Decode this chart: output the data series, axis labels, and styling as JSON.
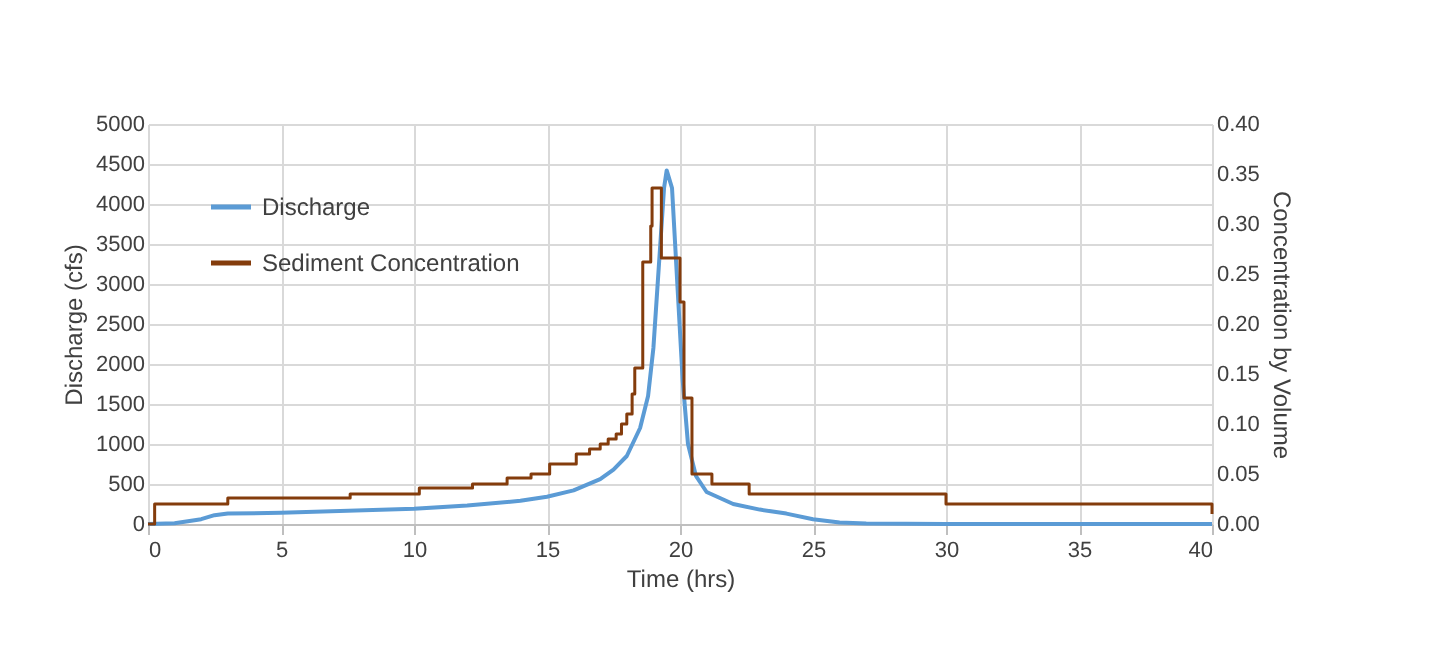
{
  "chart_data": {
    "type": "line",
    "xlabel": "Time (hrs)",
    "ylabel": "Discharge (cfs)",
    "y2label": "Concentration by Volume",
    "xlim": [
      0,
      40
    ],
    "xticks": [
      0,
      5,
      10,
      15,
      20,
      25,
      30,
      35,
      40
    ],
    "ylim": [
      0,
      5000
    ],
    "yticks": [
      0,
      500,
      1000,
      1500,
      2000,
      2500,
      3000,
      3500,
      4000,
      4500,
      5000
    ],
    "y2lim": [
      0,
      0.4
    ],
    "y2ticks": [
      {
        "value": 0,
        "label": "0.00"
      },
      {
        "value": 0.05,
        "label": "0.05"
      },
      {
        "value": 0.1,
        "label": "0.10"
      },
      {
        "value": 0.15,
        "label": "0.15"
      },
      {
        "value": 0.2,
        "label": "0.20"
      },
      {
        "value": 0.25,
        "label": "0.25"
      },
      {
        "value": 0.3,
        "label": "0.30"
      },
      {
        "value": 0.35,
        "label": "0.35"
      },
      {
        "value": 0.4,
        "label": "0.40"
      }
    ],
    "grid": true,
    "legend": "top left",
    "series": [
      {
        "name": "Discharge",
        "color": "#5b9bd5",
        "type": "line",
        "x": [
          0,
          1,
          2,
          2.5,
          3,
          5,
          10,
          12,
          14,
          15,
          16,
          17,
          17.5,
          18,
          18.5,
          18.8,
          19,
          19.2,
          19.4,
          19.5,
          19.7,
          19.9,
          20.1,
          20.3,
          20.6,
          21,
          22,
          23,
          24,
          25,
          26,
          27,
          30,
          40
        ],
        "values": [
          0,
          10,
          60,
          110,
          130,
          140,
          190,
          230,
          290,
          340,
          420,
          560,
          680,
          850,
          1200,
          1600,
          2200,
          3200,
          4200,
          4420,
          4200,
          3000,
          1800,
          1000,
          600,
          400,
          250,
          180,
          130,
          60,
          20,
          5,
          0,
          0
        ]
      },
      {
        "name": "Sediment Concentration",
        "color": "#843c0c",
        "type": "step",
        "axis": "y2",
        "x": [
          0,
          0.25,
          3,
          7.6,
          10.2,
          12.2,
          13.5,
          14.4,
          15.1,
          16.1,
          16.6,
          17,
          17.3,
          17.6,
          17.8,
          18,
          18.2,
          18.3,
          18.6,
          18.9,
          18.95,
          19.3,
          19.7,
          20.0,
          20.15,
          20.45,
          21.2,
          22.6,
          30,
          40
        ],
        "values": [
          0,
          0.02,
          0.026,
          0.03,
          0.036,
          0.04,
          0.046,
          0.05,
          0.06,
          0.07,
          0.075,
          0.08,
          0.085,
          0.09,
          0.1,
          0.11,
          0.13,
          0.156,
          0.262,
          0.298,
          0.336,
          0.266,
          0.266,
          0.222,
          0.126,
          0.05,
          0.04,
          0.03,
          0.02,
          0.01
        ]
      }
    ]
  }
}
